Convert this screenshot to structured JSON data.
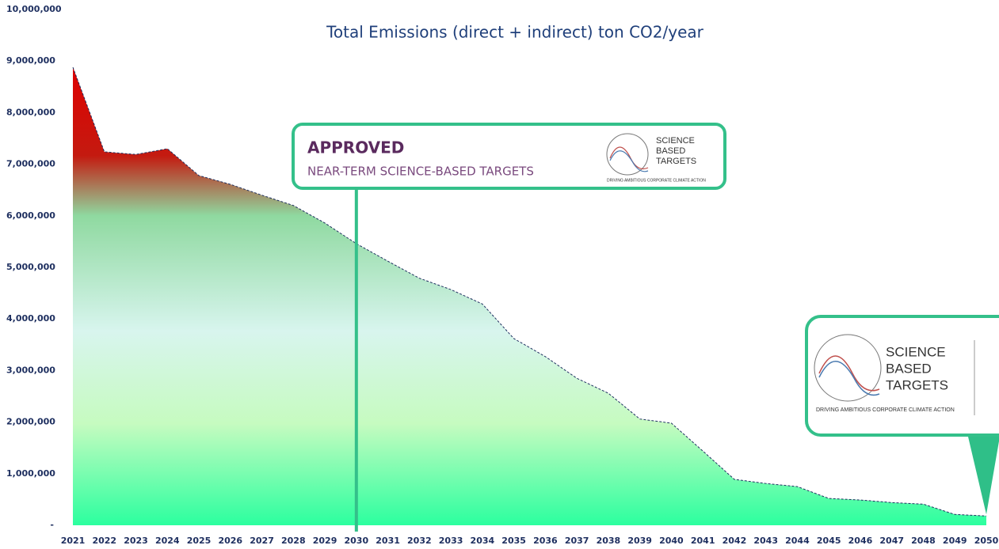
{
  "chart_data": {
    "type": "area",
    "title": "Total Emissions (direct + indirect) ton CO2/year",
    "categories": [
      "2021",
      "2022",
      "2023",
      "2024",
      "2025",
      "2026",
      "2027",
      "2028",
      "2029",
      "2030",
      "2031",
      "2032",
      "2033",
      "2034",
      "2035",
      "2036",
      "2037",
      "2038",
      "2039",
      "2040",
      "2041",
      "2042",
      "2043",
      "2044",
      "2045",
      "2046",
      "2047",
      "2048",
      "2049",
      "2050"
    ],
    "values": [
      8880000,
      7240000,
      7190000,
      7300000,
      6780000,
      6610000,
      6400000,
      6200000,
      5860000,
      5460000,
      5120000,
      4790000,
      4570000,
      4290000,
      3620000,
      3270000,
      2850000,
      2560000,
      2060000,
      1980000,
      1440000,
      890000,
      810000,
      750000,
      520000,
      490000,
      440000,
      410000,
      210000,
      180000
    ],
    "ylim": [
      0,
      10000000
    ],
    "yticks": [
      {
        "value": 0,
        "label": "-"
      },
      {
        "value": 1000000,
        "label": "1,000,000"
      },
      {
        "value": 2000000,
        "label": "2,000,000"
      },
      {
        "value": 3000000,
        "label": "3,000,000"
      },
      {
        "value": 4000000,
        "label": "4,000,000"
      },
      {
        "value": 5000000,
        "label": "5,000,000"
      },
      {
        "value": 6000000,
        "label": "6,000,000"
      },
      {
        "value": 7000000,
        "label": "7,000,000"
      },
      {
        "value": 8000000,
        "label": "8,000,000"
      },
      {
        "value": 9000000,
        "label": "9,000,000"
      },
      {
        "value": 10000000,
        "label": "10,000,000"
      }
    ],
    "grid": false,
    "annotations": {
      "approved": "APPROVED",
      "near_term": "NEAR-TERM SCIENCE-BASED TARGETS",
      "logo": [
        "SCIENCE",
        "BASED",
        "TARGETS"
      ],
      "tagline": "DRIVING AMBITIOUS CORPORATE CLIMATE ACTION"
    }
  }
}
